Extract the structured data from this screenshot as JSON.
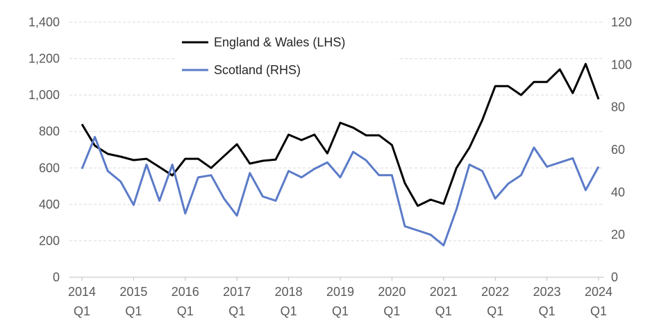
{
  "chart_data": {
    "type": "line",
    "x_labels": [
      "2014 Q1",
      "2014 Q2",
      "2014 Q3",
      "2014 Q4",
      "2015 Q1",
      "2015 Q2",
      "2015 Q3",
      "2015 Q4",
      "2016 Q1",
      "2016 Q2",
      "2016 Q3",
      "2016 Q4",
      "2017 Q1",
      "2017 Q2",
      "2017 Q3",
      "2017 Q4",
      "2018 Q1",
      "2018 Q2",
      "2018 Q3",
      "2018 Q4",
      "2019 Q1",
      "2019 Q2",
      "2019 Q3",
      "2019 Q4",
      "2020 Q1",
      "2020 Q2",
      "2020 Q3",
      "2020 Q4",
      "2021 Q1",
      "2021 Q2",
      "2021 Q3",
      "2021 Q4",
      "2022 Q1",
      "2022 Q2",
      "2022 Q3",
      "2022 Q4",
      "2023 Q1",
      "2023 Q2",
      "2023 Q3",
      "2023 Q4",
      "2024 Q1"
    ],
    "x_ticks": [
      {
        "year": "2014",
        "q": "Q1"
      },
      {
        "year": "2015",
        "q": "Q1"
      },
      {
        "year": "2016",
        "q": "Q1"
      },
      {
        "year": "2017",
        "q": "Q1"
      },
      {
        "year": "2018",
        "q": "Q1"
      },
      {
        "year": "2019",
        "q": "Q1"
      },
      {
        "year": "2020",
        "q": "Q1"
      },
      {
        "year": "2021",
        "q": "Q1"
      },
      {
        "year": "2022",
        "q": "Q1"
      },
      {
        "year": "2023",
        "q": "Q1"
      },
      {
        "year": "2024",
        "q": "Q1"
      }
    ],
    "y_left": {
      "ylim": [
        0,
        1400
      ],
      "ticks": [
        "0",
        "200",
        "400",
        "600",
        "800",
        "1,000",
        "1,200",
        "1,400"
      ]
    },
    "y_right": {
      "ylim": [
        0,
        120
      ],
      "ticks": [
        "0",
        "20",
        "40",
        "60",
        "80",
        "100",
        "120"
      ]
    },
    "grid": true,
    "legend_position": "top-center",
    "series": [
      {
        "name": "England & Wales (LHS)",
        "axis": "left",
        "color": "#000000",
        "values": [
          840,
          722,
          677,
          662,
          643,
          650,
          605,
          559,
          650,
          650,
          600,
          665,
          730,
          624,
          639,
          646,
          783,
          753,
          783,
          680,
          848,
          821,
          779,
          779,
          726,
          517,
          392,
          426,
          403,
          600,
          711,
          863,
          1049,
          1049,
          1000,
          1072,
          1072,
          1141,
          1011,
          1171,
          977
        ]
      },
      {
        "name": "Scotland (RHS)",
        "axis": "right",
        "color": "#5B7BC8",
        "values": [
          51,
          66,
          50,
          45,
          34,
          53,
          36,
          53,
          30,
          47,
          48,
          37,
          29,
          49,
          38,
          36,
          50,
          47,
          51,
          54,
          47,
          59,
          55,
          48,
          48,
          24,
          22,
          20,
          15,
          32,
          53,
          50,
          37,
          44,
          48,
          61,
          52,
          54,
          56,
          41,
          52
        ]
      }
    ]
  }
}
